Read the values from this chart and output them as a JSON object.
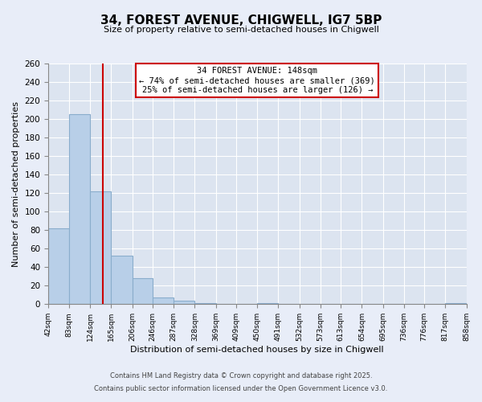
{
  "title": "34, FOREST AVENUE, CHIGWELL, IG7 5BP",
  "subtitle": "Size of property relative to semi-detached houses in Chigwell",
  "xlabel": "Distribution of semi-detached houses by size in Chigwell",
  "ylabel": "Number of semi-detached properties",
  "bin_edges": [
    42,
    83,
    124,
    165,
    206,
    246,
    287,
    328,
    369,
    409,
    450,
    491,
    532,
    573,
    613,
    654,
    695,
    736,
    776,
    817,
    858
  ],
  "bar_heights": [
    82,
    205,
    122,
    52,
    28,
    7,
    4,
    1,
    0,
    0,
    1,
    0,
    0,
    0,
    0,
    0,
    0,
    0,
    0,
    1
  ],
  "bar_color": "#b8cfe8",
  "bar_edge_color": "#8aadcc",
  "ylim": [
    0,
    260
  ],
  "yticks": [
    0,
    20,
    40,
    60,
    80,
    100,
    120,
    140,
    160,
    180,
    200,
    220,
    240,
    260
  ],
  "subject_size": 148,
  "vline_color": "#cc0000",
  "annotation_line1": "34 FOREST AVENUE: 148sqm",
  "annotation_line2": "← 74% of semi-detached houses are smaller (369)",
  "annotation_line3": "25% of semi-detached houses are larger (126) →",
  "annotation_box_color": "#ffffff",
  "annotation_box_edgecolor": "#cc0000",
  "footnote1": "Contains HM Land Registry data © Crown copyright and database right 2025.",
  "footnote2": "Contains public sector information licensed under the Open Government Licence v3.0.",
  "bg_color": "#e8edf8",
  "plot_bg_color": "#dce4f0",
  "grid_color": "#ffffff"
}
